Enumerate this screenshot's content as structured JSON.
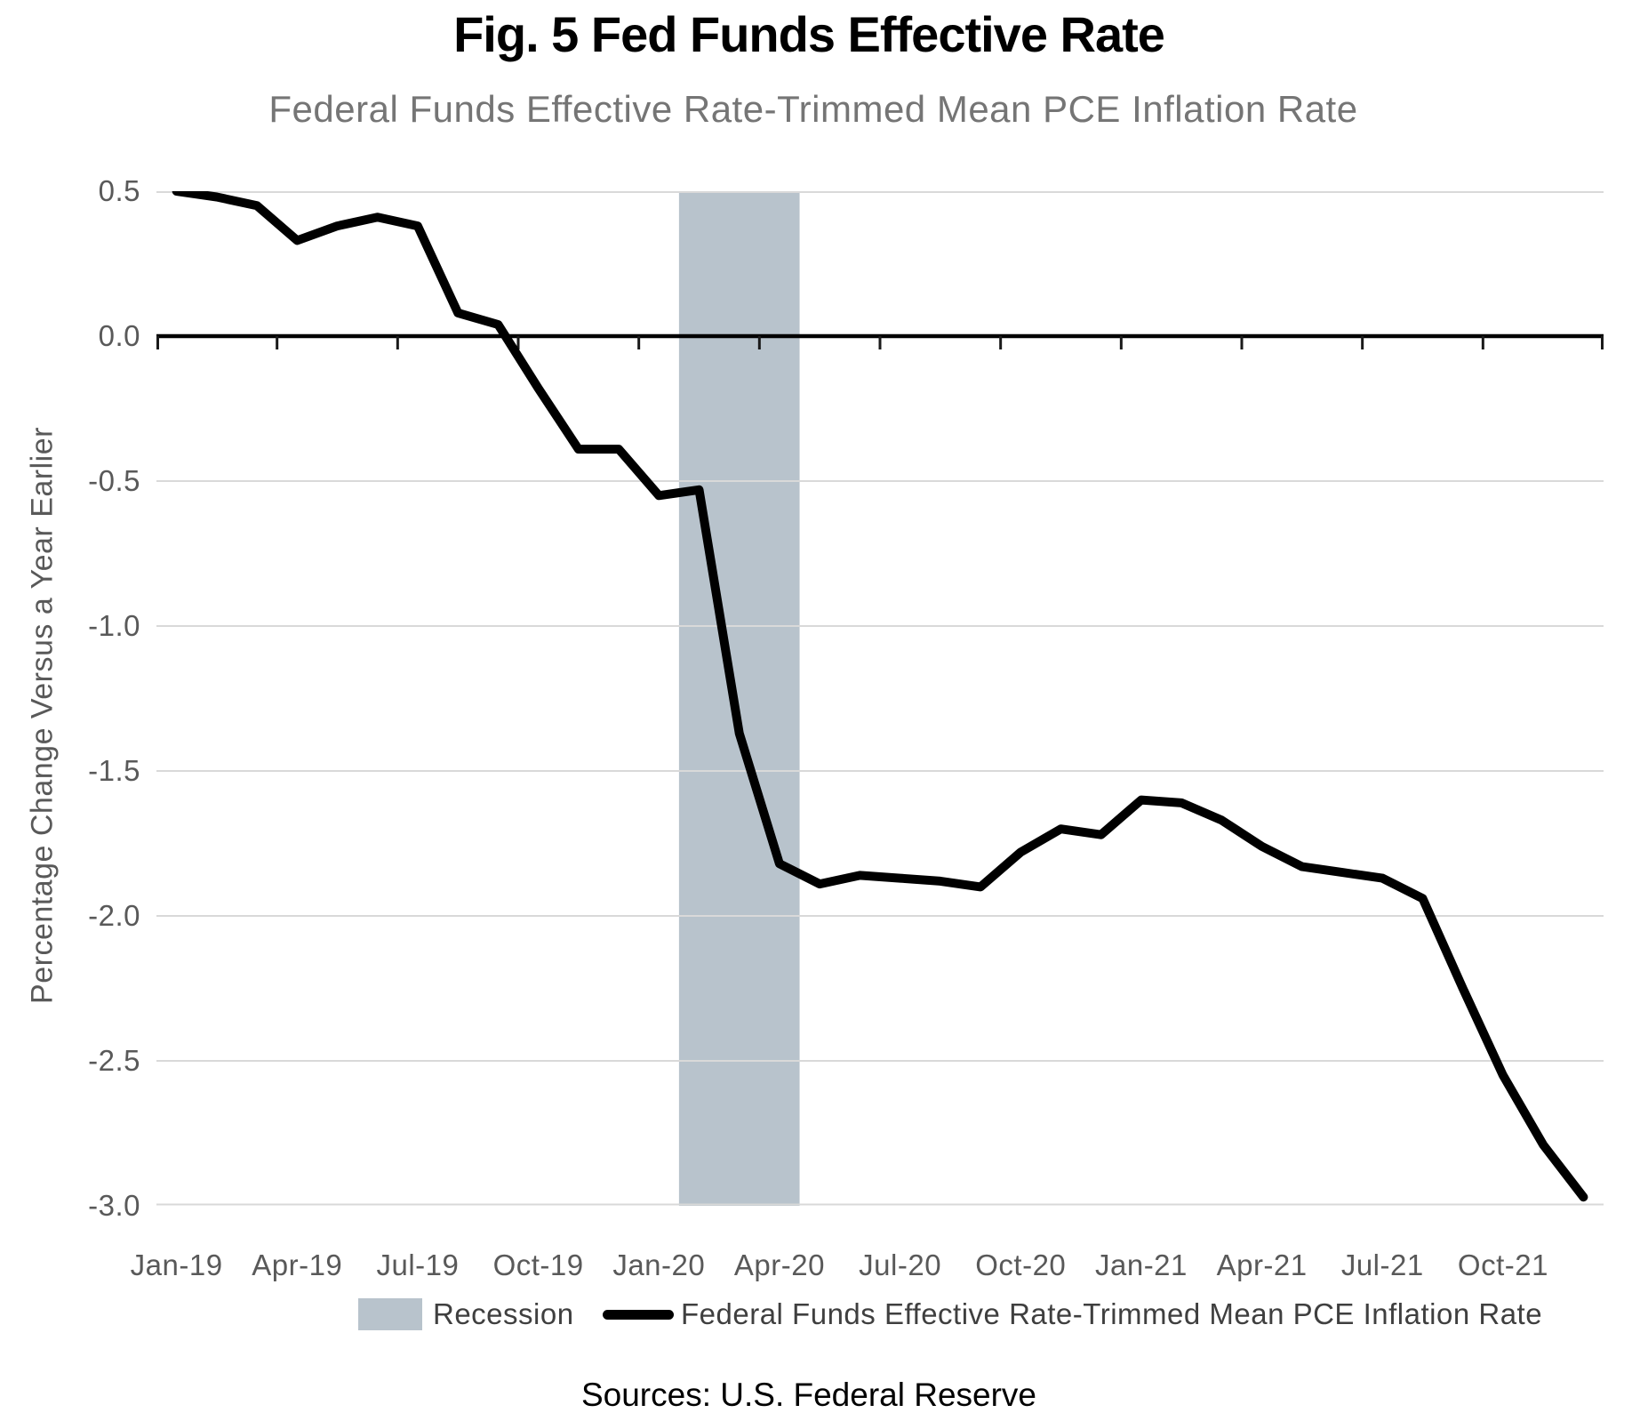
{
  "header": {
    "title": "Fig. 5 Fed Funds Effective Rate",
    "subtitle": "Federal Funds Effective Rate-Trimmed Mean PCE Inflation Rate"
  },
  "chart_data": {
    "type": "line",
    "title": "Fig. 5 Fed Funds Effective Rate",
    "subtitle": "Federal Funds Effective Rate-Trimmed Mean PCE Inflation Rate",
    "ylabel": "Percentage Change Versus a Year Earlier",
    "xlabel": "",
    "ylim": [
      -3.0,
      0.5
    ],
    "ytick_step": 0.5,
    "grid": "horizontal-only",
    "legend_position": "bottom",
    "x": [
      "Jan-19",
      "Feb-19",
      "Mar-19",
      "Apr-19",
      "May-19",
      "Jun-19",
      "Jul-19",
      "Aug-19",
      "Sep-19",
      "Oct-19",
      "Nov-19",
      "Dec-19",
      "Jan-20",
      "Feb-20",
      "Mar-20",
      "Apr-20",
      "May-20",
      "Jun-20",
      "Jul-20",
      "Aug-20",
      "Sep-20",
      "Oct-20",
      "Nov-20",
      "Dec-20",
      "Jan-21",
      "Feb-21",
      "Mar-21",
      "Apr-21",
      "May-21",
      "Jun-21",
      "Jul-21",
      "Aug-21",
      "Sep-21",
      "Oct-21",
      "Nov-21",
      "Dec-21"
    ],
    "series": [
      {
        "name": "Federal Funds Effective Rate-Trimmed Mean PCE Inflation Rate",
        "values": [
          0.5,
          0.48,
          0.45,
          0.33,
          0.38,
          0.41,
          0.38,
          0.08,
          0.04,
          -0.18,
          -0.39,
          -0.39,
          -0.55,
          -0.53,
          -1.37,
          -1.82,
          -1.89,
          -1.86,
          -1.87,
          -1.88,
          -1.9,
          -1.78,
          -1.7,
          -1.72,
          -1.6,
          -1.61,
          -1.67,
          -1.76,
          -1.83,
          -1.85,
          -1.87,
          -1.94,
          -2.25,
          -2.55,
          -2.79,
          -2.97
        ]
      }
    ],
    "xtick_labels": [
      "Jan-19",
      "Apr-19",
      "Jul-19",
      "Oct-19",
      "Jan-20",
      "Apr-20",
      "Jul-20",
      "Oct-20",
      "Jan-21",
      "Apr-21",
      "Jul-21",
      "Oct-21"
    ],
    "recession_band": {
      "from": "Feb-20",
      "to": "Apr-20"
    },
    "legend": [
      {
        "label": "Recession",
        "swatch": "area",
        "color": "#b8c3cc"
      },
      {
        "label": "Federal Funds Effective Rate-Trimmed Mean PCE Inflation Rate",
        "swatch": "line",
        "color": "#000000"
      }
    ]
  },
  "footer": {
    "sources": "Sources: U.S. Federal Reserve"
  },
  "colors": {
    "line": "#000000",
    "recession_band": "#b8c3cc",
    "gridline": "#d9d9d9",
    "zero_axis": "#000000",
    "tick_mark": "#1a1a1a",
    "tick_label": "#595959",
    "subtitle_text": "#757575",
    "legend_text": "#3f3f3f",
    "title_text": "#000000"
  }
}
